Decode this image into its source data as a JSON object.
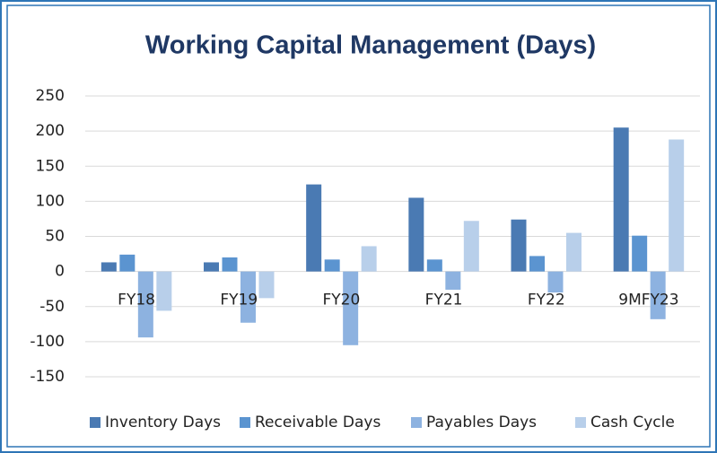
{
  "chart_data": {
    "type": "bar",
    "title": "Working Capital Management (Days)",
    "categories": [
      "FY18",
      "FY19",
      "FY20",
      "FY21",
      "FY22",
      "9MFY23"
    ],
    "series": [
      {
        "name": "Inventory Days",
        "color": "#4a7ab3",
        "values": [
          13,
          13,
          124,
          105,
          74,
          205
        ]
      },
      {
        "name": "Receivable Days",
        "color": "#5b94d0",
        "values": [
          24,
          20,
          17,
          17,
          22,
          51
        ]
      },
      {
        "name": "Payables Days",
        "color": "#8db2e0",
        "values": [
          -94,
          -73,
          -105,
          -26,
          -30,
          -68
        ]
      },
      {
        "name": "Cash Cycle",
        "color": "#b8cfea",
        "values": [
          -56,
          -38,
          36,
          72,
          55,
          188
        ]
      }
    ],
    "ylim": [
      -150,
      250
    ],
    "yticks": [
      -150,
      -100,
      -50,
      0,
      50,
      100,
      150,
      200,
      250
    ],
    "grid": true,
    "legend": "bottom"
  }
}
